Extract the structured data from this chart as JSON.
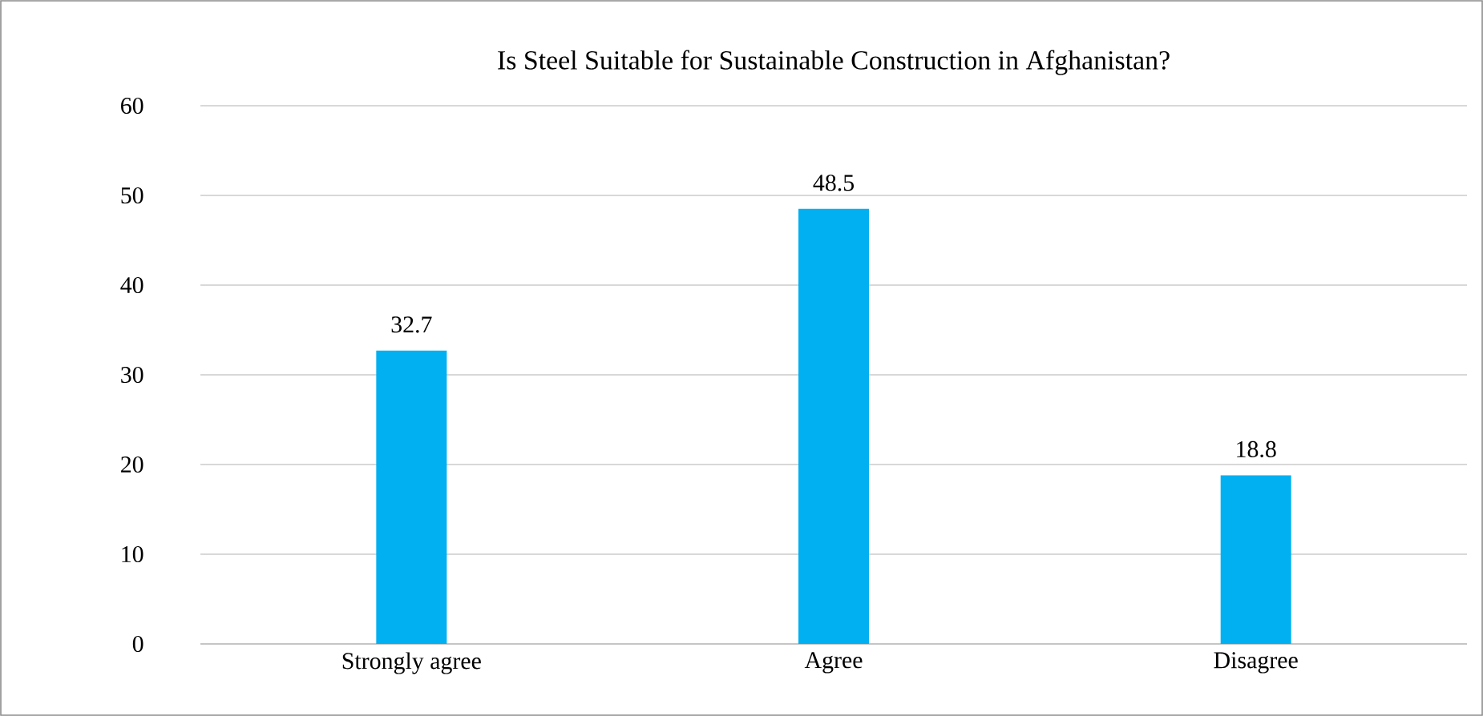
{
  "chart_data": {
    "type": "bar",
    "title": "Is Steel Suitable for Sustainable Construction in Afghanistan?",
    "categories": [
      "Strongly agree",
      "Agree",
      "Disagree"
    ],
    "values": [
      32.7,
      48.5,
      18.8
    ],
    "color": "#00b0f0",
    "ylim": [
      0,
      60
    ],
    "yticks": [
      0,
      10,
      20,
      30,
      40,
      50,
      60
    ],
    "grid": "y",
    "data_labels": true
  }
}
